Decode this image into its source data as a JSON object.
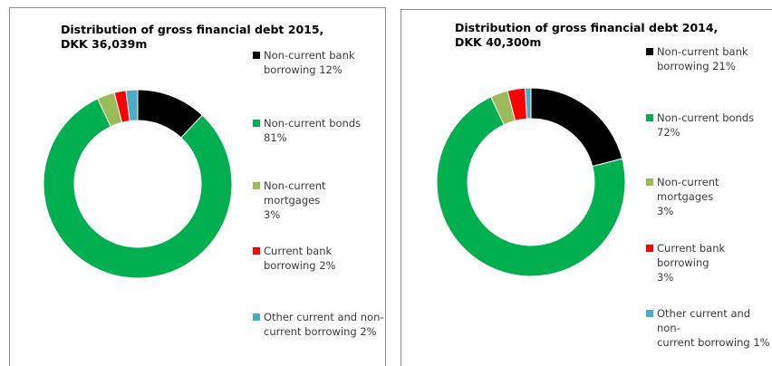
{
  "chart_data": [
    {
      "type": "pie",
      "title": "Distribution of gross financial debt 2015,",
      "subtitle": "DKK 36,039m",
      "categories": [
        "Non-current bank borrowing",
        "Non-current bonds",
        "Non-current mortgages",
        "Current bank borrowing",
        "Other current and non-current borrowing"
      ],
      "values": [
        12,
        81,
        3,
        2,
        2
      ],
      "colors": [
        "#000000",
        "#00b050",
        "#9bbb59",
        "#ff0000",
        "#4bacc6"
      ],
      "legend_labels": [
        "Non-current bank\nborrowing 12%",
        "Non-current bonds 81%",
        "Non-current mortgages\n3%",
        "Current bank\nborrowing 2%",
        "Other current and non-\ncurrent borrowing 2%"
      ],
      "legend": "right"
    },
    {
      "type": "pie",
      "title": "Distribution of gross financial debt 2014,",
      "subtitle": "DKK 40,300m",
      "categories": [
        "Non-current bank borrowing",
        "Non-current bonds",
        "Non-current mortgages",
        "Current bank borrowing",
        "Other current and non-current borrowing"
      ],
      "values": [
        21,
        72,
        3,
        3,
        1
      ],
      "colors": [
        "#000000",
        "#00b050",
        "#9bbb59",
        "#ff0000",
        "#4bacc6"
      ],
      "legend_labels": [
        "Non-current bank\nborrowing 21%",
        "Non-current bonds 72%",
        "Non-current mortgages\n3%",
        "Current bank borrowing\n3%",
        "Other current and non-\ncurrent borrowing 1%"
      ],
      "legend": "right"
    }
  ]
}
